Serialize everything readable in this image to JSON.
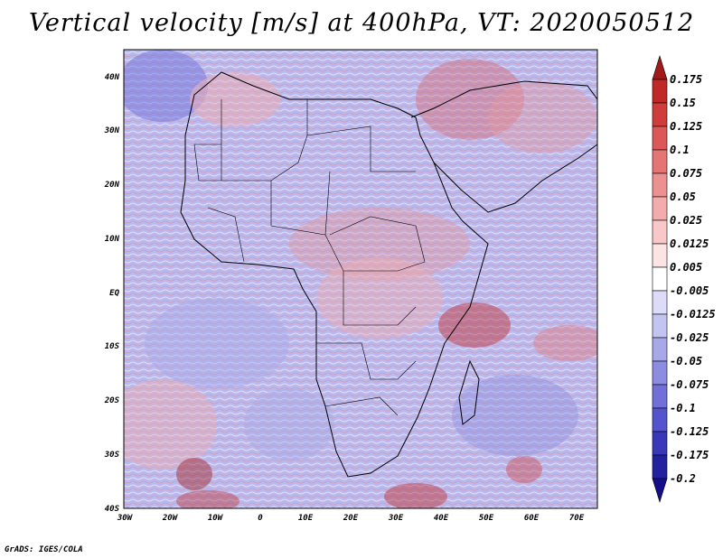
{
  "title": "Vertical velocity [m/s] at 400hPa, VT: 2020050512",
  "credit": "GrADS: IGES/COLA",
  "map": {
    "lat_labels": [
      "40N",
      "30N",
      "20N",
      "10N",
      "EQ",
      "10S",
      "20S",
      "30S",
      "40S"
    ],
    "lon_labels": [
      "30W",
      "20W",
      "10W",
      "0",
      "10E",
      "20E",
      "30E",
      "40E",
      "50E",
      "60E",
      "70E"
    ]
  },
  "colorbar": {
    "levels": [
      "0.175",
      "0.15",
      "0.125",
      "0.1",
      "0.075",
      "0.05",
      "0.025",
      "0.0125",
      "0.005",
      "-0.005",
      "-0.0125",
      "-0.025",
      "-0.05",
      "-0.075",
      "-0.1",
      "-0.125",
      "-0.175",
      "-0.2"
    ],
    "colors": [
      "#a01a1a",
      "#c02828",
      "#cf3c3c",
      "#dc5858",
      "#e57474",
      "#ec9090",
      "#f3acac",
      "#f8c8c8",
      "#fbe4e4",
      "#ffffff",
      "#dcdcf8",
      "#c4c4f0",
      "#a8a8e8",
      "#8c8ce0",
      "#7070d8",
      "#5454cc",
      "#3838b8",
      "#2222a0",
      "#140f88"
    ]
  }
}
